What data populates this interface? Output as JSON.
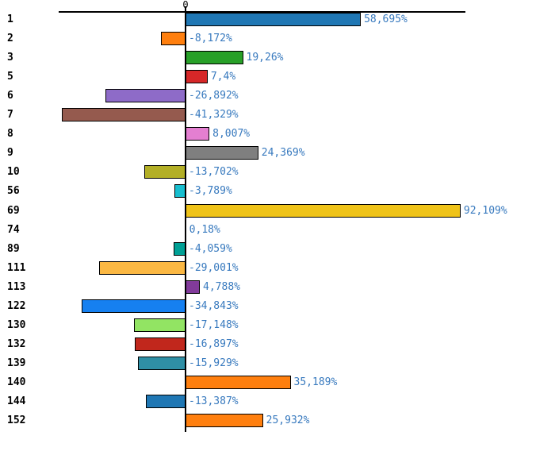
{
  "chart_data": {
    "type": "bar",
    "orientation": "horizontal",
    "title": "",
    "xlabel": "",
    "ylabel": "",
    "grid": false,
    "legend": false,
    "xlim": [
      -45,
      100
    ],
    "x_axis": {
      "zero_tick_label": "0"
    },
    "axis_color": "#000000",
    "value_label_color": "#3779BE",
    "categories": [
      "1",
      "2",
      "3",
      "5",
      "6",
      "7",
      "8",
      "9",
      "10",
      "56",
      "69",
      "74",
      "89",
      "111",
      "113",
      "122",
      "130",
      "132",
      "139",
      "140",
      "144",
      "152"
    ],
    "values": [
      58.695,
      -8.172,
      19.26,
      7.4,
      -26.892,
      -41.329,
      8.007,
      24.369,
      -13.702,
      -3.789,
      92.109,
      0.18,
      -4.059,
      -29.001,
      4.788,
      -34.843,
      -17.148,
      -16.897,
      -15.929,
      35.189,
      -13.387,
      25.932
    ],
    "value_labels": [
      "58,695%",
      "-8,172%",
      "19,26%",
      "7,4%",
      "-26,892%",
      "-41,329%",
      "8,007%",
      "24,369%",
      "-13,702%",
      "-3,789%",
      "92,109%",
      "0,18%",
      "-4,059%",
      "-29,001%",
      "4,788%",
      "-34,843%",
      "-17,148%",
      "-16,897%",
      "-15,929%",
      "35,189%",
      "-13,387%",
      "25,932%"
    ],
    "bar_colors": [
      "#1F77B4",
      "#FF7F0E",
      "#28A028",
      "#D62728",
      "#8E6BC8",
      "#955A4E",
      "#E47FD1",
      "#7F7F7F",
      "#B3AF26",
      "#17BECF",
      "#EFC319",
      "#BFBFBF",
      "#00A095",
      "#FBB843",
      "#823B9B",
      "#1680F0",
      "#92E463",
      "#C1271C",
      "#2F8FA5",
      "#FF7F0E",
      "#1F77B4",
      "#FF7F0E"
    ]
  }
}
